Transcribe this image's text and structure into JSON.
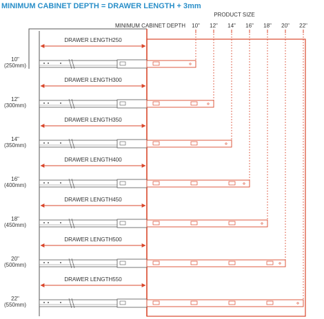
{
  "title": "MINIMUM CABINET DEPTH = DRAWER LENGTH + 3mm",
  "product_size_label": "PRODUCT SIZE",
  "min_depth_label": "MINIMUM CABINET DEPTH",
  "sizes": [
    "10\"",
    "12\"",
    "14\"",
    "16\"",
    "18\"",
    "20\"",
    "22\""
  ],
  "rows": [
    {
      "size": "10\"",
      "mm": "(250mm)",
      "drawer": "DRAWER LENGTH250"
    },
    {
      "size": "12\"",
      "mm": "(300mm)",
      "drawer": "DRAWER LENGTH300"
    },
    {
      "size": "14\"",
      "mm": "(350mm)",
      "drawer": "DRAWER LENGTH350"
    },
    {
      "size": "16\"",
      "mm": "(400mm)",
      "drawer": "DRAWER LENGTH400"
    },
    {
      "size": "18\"",
      "mm": "(450mm)",
      "drawer": "DRAWER LENGTH450"
    },
    {
      "size": "20\"",
      "mm": "(500mm)",
      "drawer": "DRAWER LENGTH500"
    },
    {
      "size": "22\"",
      "mm": "(550mm)",
      "drawer": "DRAWER LENGTH550"
    }
  ]
}
